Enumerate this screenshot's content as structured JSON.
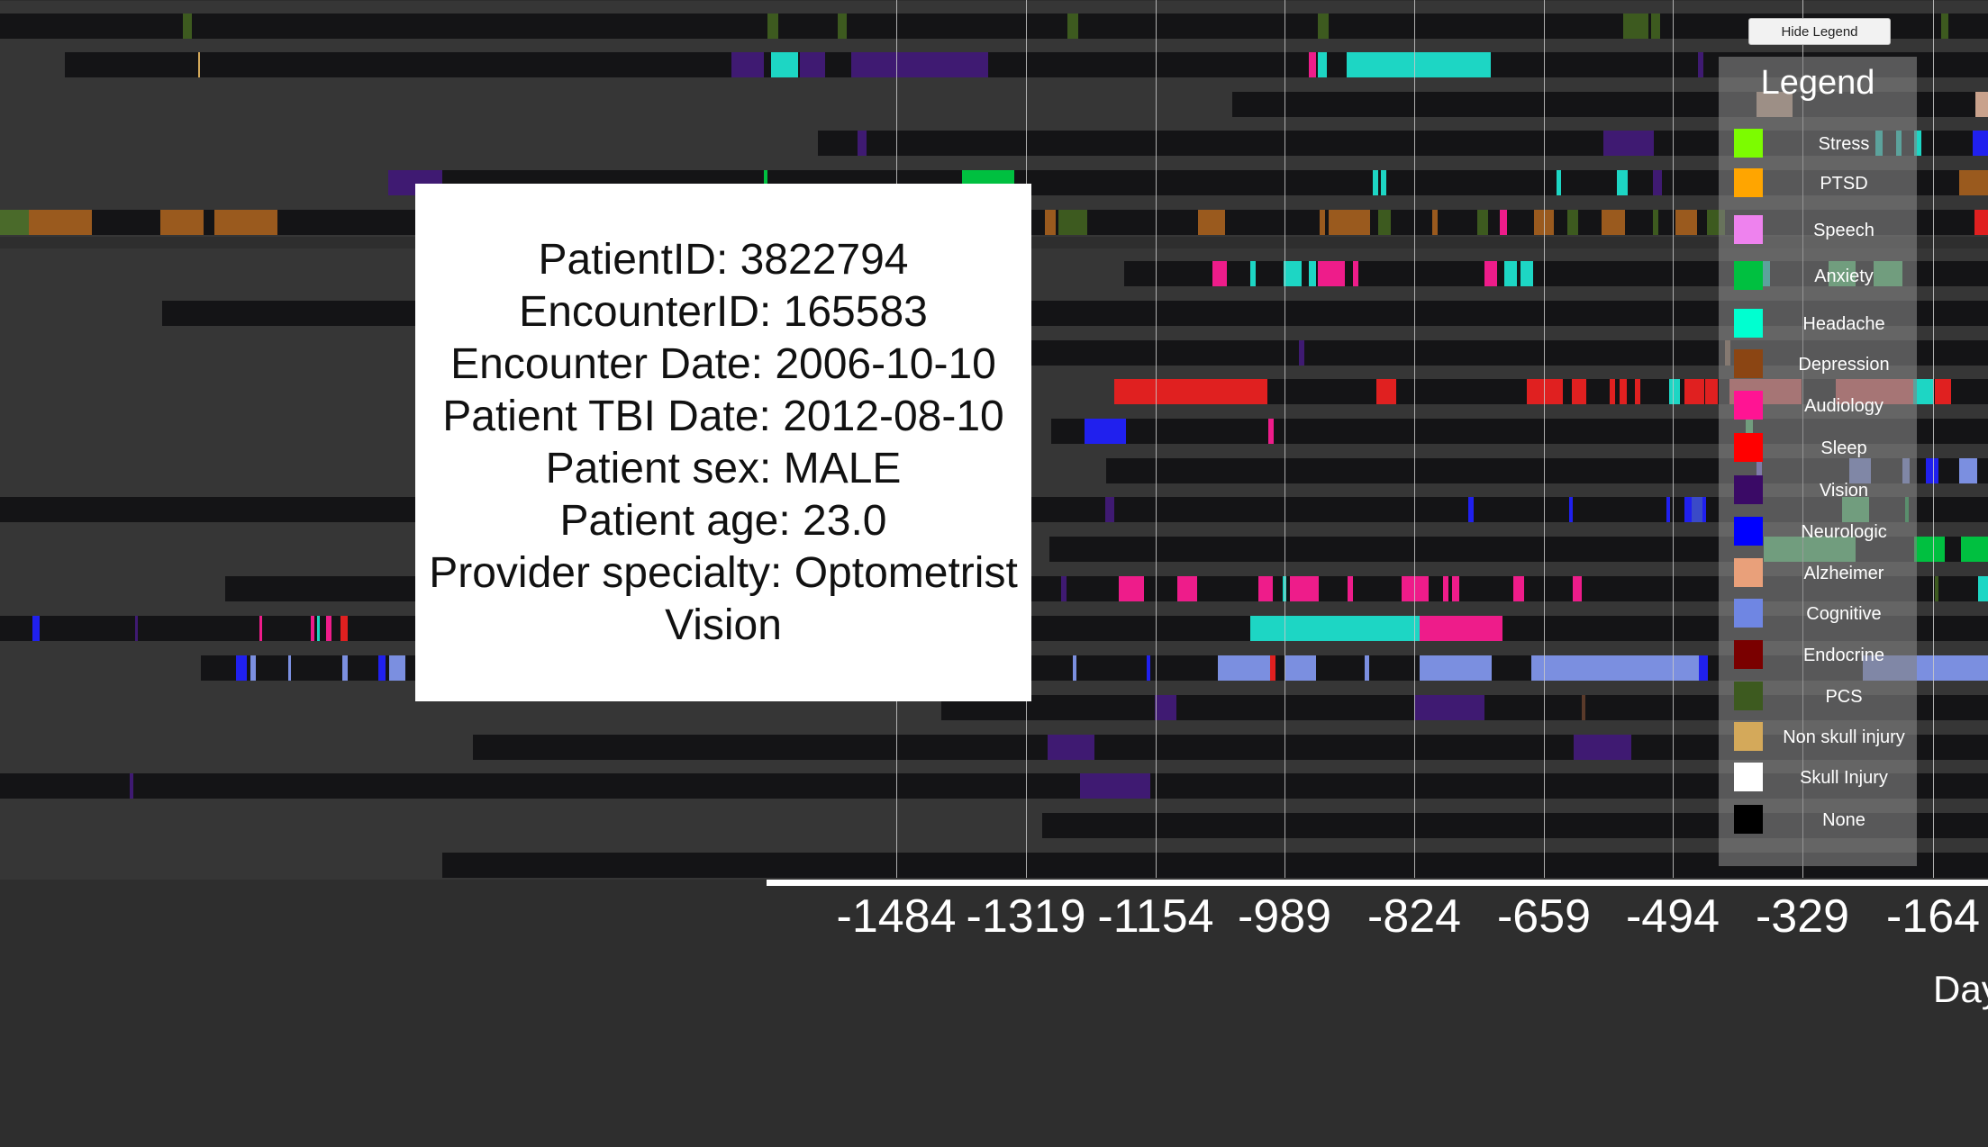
{
  "hide_legend_button": "Hide Legend",
  "axis": {
    "ticks": [
      "-1484",
      "-1319",
      "-1154",
      "-989",
      "-824",
      "-659",
      "-494",
      "-329",
      "-164"
    ],
    "title": "Day"
  },
  "tooltip": {
    "lines": [
      "PatientID: 3822794",
      "EncounterID: 165583",
      "Encounter Date: 2006-10-10",
      "Patient TBI Date: 2012-08-10",
      "Patient sex: MALE",
      "Patient age: 23.0",
      "Provider specialty: Optometrist",
      "Vision"
    ]
  },
  "legend": {
    "title": "Legend",
    "items": [
      {
        "label": "Stress",
        "color": "#7cfc00"
      },
      {
        "label": "PTSD",
        "color": "#ffa500"
      },
      {
        "label": "Speech",
        "color": "#ee82ee"
      },
      {
        "label": "Anxiety",
        "color": "#00c040"
      },
      {
        "label": "Headache",
        "color": "#00ffd0"
      },
      {
        "label": "Depression",
        "color": "#8b4513"
      },
      {
        "label": "Audiology",
        "color": "#ff1493"
      },
      {
        "label": "Sleep",
        "color": "#ff0000"
      },
      {
        "label": "Vision",
        "color": "#3a0a66"
      },
      {
        "label": "Neurologic",
        "color": "#0000ff"
      },
      {
        "label": "Alzheimer",
        "color": "#e9a07a"
      },
      {
        "label": "Cognitive",
        "color": "#6f86e3"
      },
      {
        "label": "Endocrine",
        "color": "#7a0000"
      },
      {
        "label": "PCS",
        "color": "#3d5a1f"
      },
      {
        "label": "Non skull injury",
        "color": "#d4a95a"
      },
      {
        "label": "Skull Injury",
        "color": "#ffffff"
      },
      {
        "label": "None",
        "color": "#000000"
      }
    ]
  }
}
